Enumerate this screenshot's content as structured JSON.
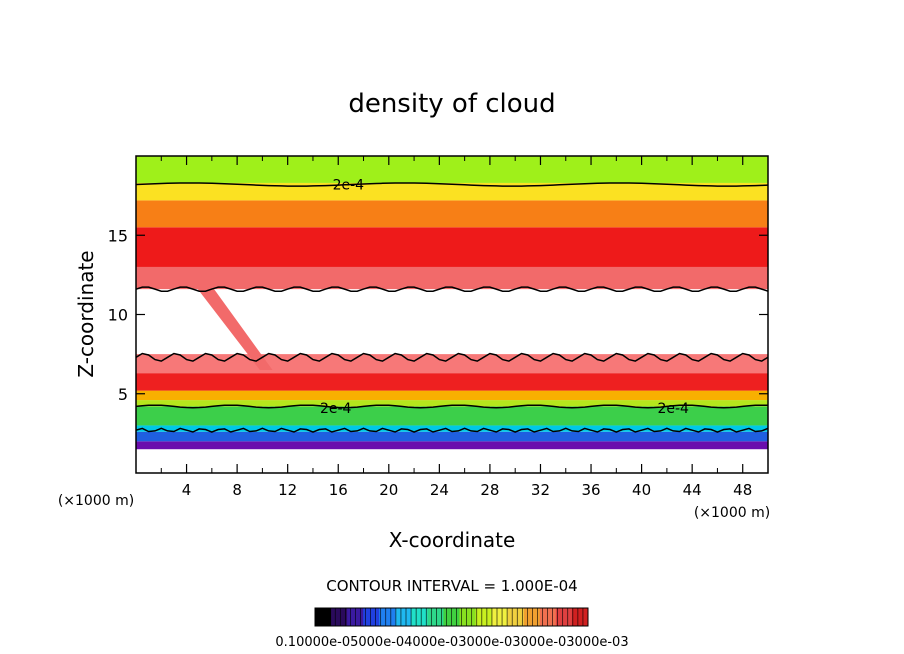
{
  "chart_data": {
    "type": "heatmap",
    "title": "density of cloud",
    "xlabel": "X-coordinate",
    "ylabel": "Z-coordinate",
    "x_unit": "(×1000 m)",
    "xlim": [
      0,
      50
    ],
    "ylim": [
      0,
      20
    ],
    "x_ticks": [
      4,
      8,
      12,
      16,
      20,
      24,
      28,
      32,
      36,
      40,
      44,
      48
    ],
    "y_ticks": [
      5,
      10,
      15
    ],
    "contour_labels": [
      {
        "text": "2e-4",
        "x": 16.8,
        "z": 18.2
      },
      {
        "text": "2e-4",
        "x": 15.8,
        "z": 4.1
      },
      {
        "text": "2e-4",
        "x": 42.5,
        "z": 4.1
      }
    ],
    "bands": [
      {
        "z_from": 1.5,
        "z_to": 2.0,
        "value": 1e-05,
        "color": "#6a0dad"
      },
      {
        "z_from": 2.0,
        "z_to": 2.6,
        "value": 6e-05,
        "color": "#1f5fe0"
      },
      {
        "z_from": 2.6,
        "z_to": 3.0,
        "value": 0.00011,
        "color": "#00c8e6"
      },
      {
        "z_from": 3.0,
        "z_to": 4.2,
        "value": 0.00017,
        "color": "#3ccf4a"
      },
      {
        "z_from": 4.2,
        "z_to": 4.6,
        "value": 0.0002,
        "color": "#b5e61d"
      },
      {
        "z_from": 4.6,
        "z_to": 5.2,
        "value": 0.00026,
        "color": "#f8b000"
      },
      {
        "z_from": 5.2,
        "z_to": 6.3,
        "value": 0.0003,
        "color": "#ee2020"
      },
      {
        "z_from": 6.3,
        "z_to": 7.5,
        "value": 0.00025,
        "color": "#f77878"
      },
      {
        "z_from": 11.6,
        "z_to": 13.0,
        "value": 0.00025,
        "color": "#f26a6a"
      },
      {
        "z_from": 13.0,
        "z_to": 15.5,
        "value": 0.0003,
        "color": "#ee1a1a"
      },
      {
        "z_from": 15.5,
        "z_to": 17.2,
        "value": 0.00025,
        "color": "#f77f16"
      },
      {
        "z_from": 17.2,
        "z_to": 18.3,
        "value": 0.0002,
        "color": "#fbe122"
      },
      {
        "z_from": 18.3,
        "z_to": 20.0,
        "value": 0.00015,
        "color": "#9ff01a"
      }
    ],
    "colorbar": {
      "title": "CONTOUR INTERVAL = 1.000E-04",
      "tick_labels_text": "0.10000e-05000e-04000e-03000e-03000e-03000e-03",
      "colors": [
        "#000000",
        "#2a0a5c",
        "#3a1aa0",
        "#2040e0",
        "#1f7ff0",
        "#1fb8f0",
        "#20e0c8",
        "#2ed88a",
        "#40d040",
        "#88e020",
        "#c8f020",
        "#f0f040",
        "#f0d040",
        "#f0a030",
        "#f07050",
        "#e04040",
        "#d02020"
      ]
    }
  }
}
